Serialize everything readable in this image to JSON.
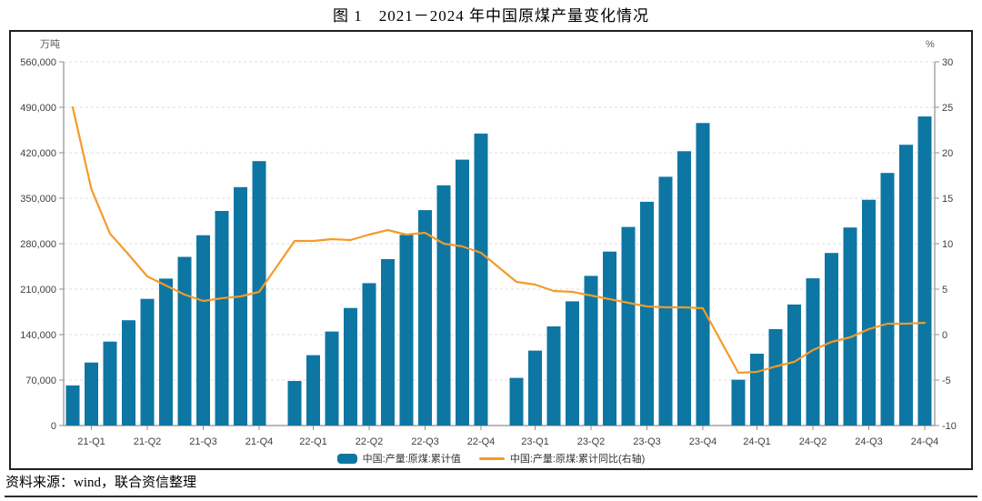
{
  "page": {
    "title": "图 1　2021－2024 年中国原煤产量变化情况",
    "source_note": "资料来源：wind，联合资信整理"
  },
  "chart_data": {
    "type": "bar+line",
    "title": "图 1　2021－2024 年中国原煤产量变化情况",
    "grid": "horizontal-dashed",
    "left_axis": {
      "unit": "万吨",
      "min": 0,
      "max": 560000,
      "step": 70000,
      "tick_labels": [
        "560,000",
        "490,000",
        "420,000",
        "350,000",
        "280,000",
        "210,000",
        "140,000",
        "70,000",
        "0"
      ]
    },
    "right_axis": {
      "unit": "%",
      "min": -10,
      "max": 30,
      "step": 5,
      "tick_labels": [
        "30",
        "25",
        "20",
        "15",
        "10",
        "5",
        "0",
        "-5",
        "-10"
      ]
    },
    "x_tick_labels": [
      "21-Q1",
      "21-Q2",
      "21-Q3",
      "21-Q4",
      "22-Q1",
      "22-Q2",
      "22-Q3",
      "22-Q4",
      "23-Q1",
      "23-Q2",
      "23-Q3",
      "23-Q4",
      "24-Q1",
      "24-Q2",
      "24-Q3",
      "24-Q4"
    ],
    "legend": [
      {
        "label": "中国:产量:原煤:累计值",
        "type": "bar",
        "color": "#0e76a3"
      },
      {
        "label": "中国:产量:原煤:累计同比(右轴)",
        "type": "line",
        "color": "#f59a28"
      }
    ],
    "years": [
      {
        "year": "2021",
        "production_wan_tons": [
          61760,
          97060,
          129170,
          162180,
          194980,
          226190,
          259720,
          292970,
          330330,
          367080,
          407140
        ],
        "yoy_pct": [
          25.0,
          16.0,
          11.1,
          8.8,
          6.4,
          5.4,
          4.4,
          3.7,
          4.0,
          4.2,
          4.7
        ]
      },
      {
        "year": "2022",
        "production_wan_tons": [
          68660,
          108330,
          144830,
          181020,
          219190,
          256230,
          293640,
          331660,
          369950,
          409360,
          449560
        ],
        "yoy_pct": [
          10.3,
          10.3,
          10.5,
          10.4,
          11.0,
          11.5,
          11.0,
          11.2,
          10.0,
          9.7,
          9.0
        ]
      },
      {
        "year": "2023",
        "production_wan_tons": [
          73420,
          115330,
          152650,
          191180,
          230440,
          267870,
          305740,
          344470,
          383040,
          422430,
          465810
        ],
        "yoy_pct": [
          5.8,
          5.5,
          4.8,
          4.7,
          4.3,
          3.9,
          3.5,
          3.1,
          3.0,
          3.0,
          2.9
        ]
      },
      {
        "year": "2024",
        "production_wan_tons": [
          70520,
          110560,
          148380,
          186330,
          226620,
          265710,
          304970,
          347570,
          388930,
          432360,
          475900
        ],
        "yoy_pct": [
          -4.2,
          -4.1,
          -3.5,
          -3.0,
          -1.7,
          -0.8,
          -0.3,
          0.6,
          1.2,
          1.2,
          1.3
        ]
      }
    ]
  }
}
